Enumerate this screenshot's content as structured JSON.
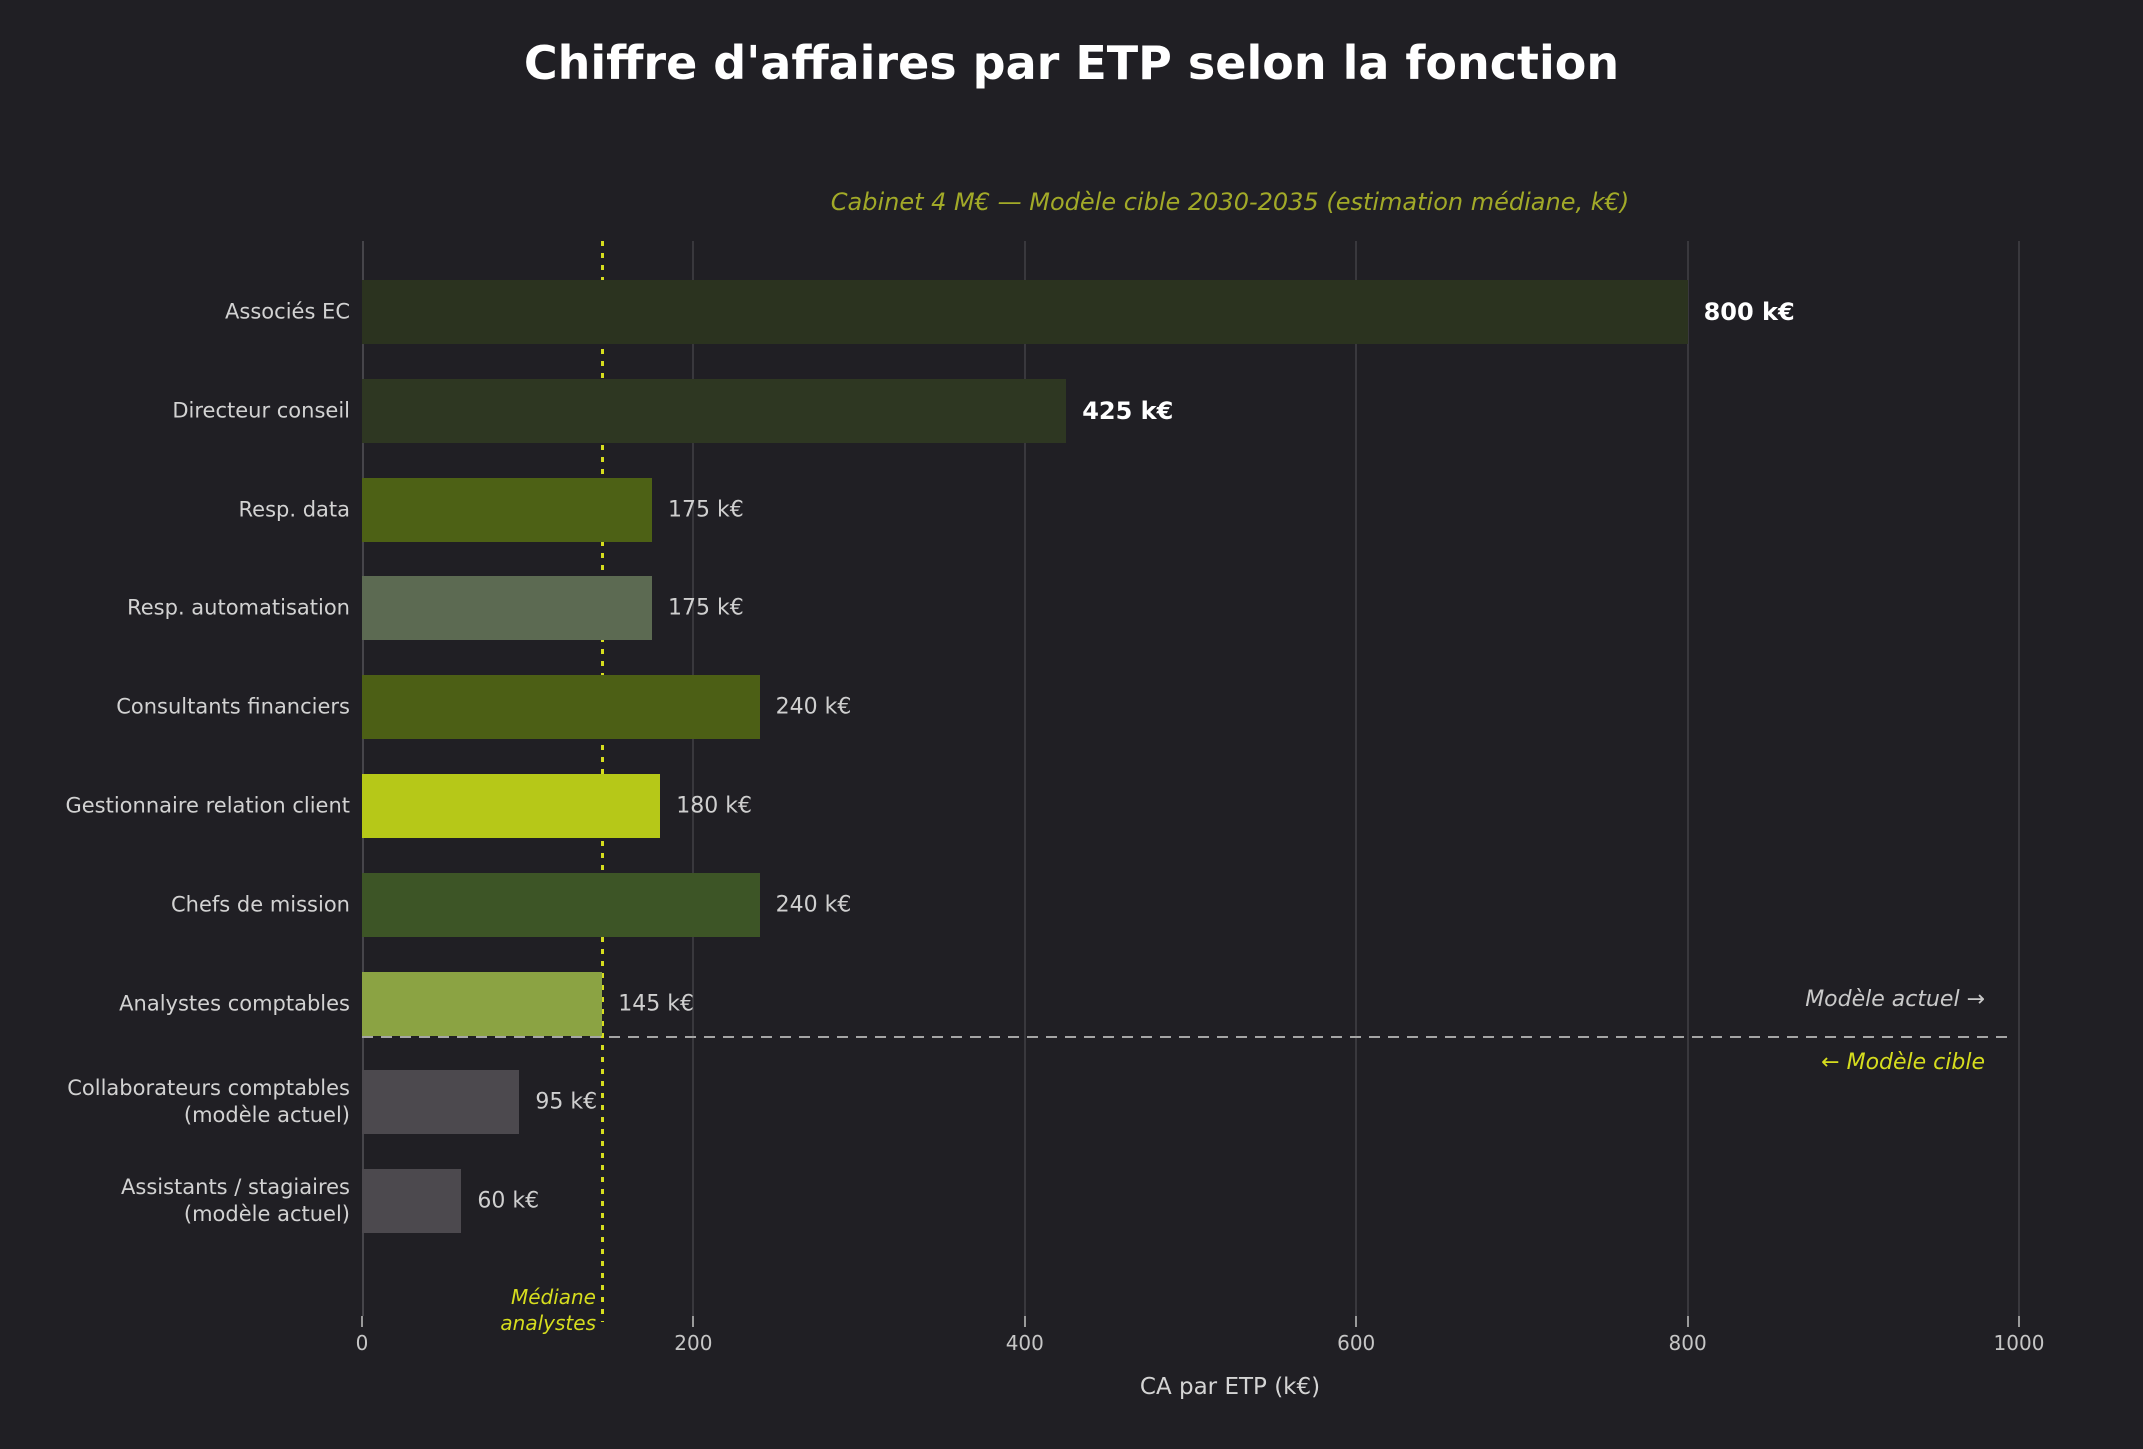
{
  "chart_data": {
    "type": "bar",
    "orientation": "horizontal",
    "title": "Chiffre d'affaires par ETP selon la fonction",
    "subtitle": "Cabinet 4 M€ — Modèle cible 2030-2035 (estimation médiane, k€)",
    "xlabel": "CA par ETP (k€)",
    "xlim": [
      0,
      1000
    ],
    "xticks": [
      0,
      200,
      400,
      600,
      800,
      1000
    ],
    "grid": "vertical",
    "legend": "none",
    "bars": [
      {
        "category": "Associés EC",
        "value": 800,
        "label": "800 k€",
        "color": "#2b331f",
        "bold": true
      },
      {
        "category": "Directeur conseil",
        "value": 425,
        "label": "425 k€",
        "color": "#2e3722",
        "bold": true
      },
      {
        "category": "Resp. data",
        "value": 175,
        "label": "175 k€",
        "color": "#4d6115",
        "bold": false
      },
      {
        "category": "Resp. automatisation",
        "value": 175,
        "label": "175 k€",
        "color": "#5c6a52",
        "bold": false
      },
      {
        "category": "Consultants financiers",
        "value": 240,
        "label": "240 k€",
        "color": "#4c5f15",
        "bold": false
      },
      {
        "category": "Gestionnaire relation client",
        "value": 180,
        "label": "180 k€",
        "color": "#b6c818",
        "bold": false
      },
      {
        "category": "Chefs de mission",
        "value": 240,
        "label": "240 k€",
        "color": "#3d5526",
        "bold": false
      },
      {
        "category": "Analystes comptables",
        "value": 145,
        "label": "145 k€",
        "color": "#8ba343",
        "bold": false
      },
      {
        "category": "Collaborateurs comptables\n(modèle actuel)",
        "value": 95,
        "label": "95 k€",
        "color": "#4c494e",
        "bold": false
      },
      {
        "category": "Assistants / stagiaires\n(modèle actuel)",
        "value": 60,
        "label": "60 k€",
        "color": "#4c494e",
        "bold": false
      }
    ],
    "annotations": {
      "median_line": {
        "x": 145,
        "label": "Médiane\nanalystes"
      },
      "separator_label_above": "Modèle actuel →",
      "separator_label_below": "← Modèle cible"
    }
  },
  "colors": {
    "background": "#201f24",
    "grid": "#39383d",
    "spine": "#46454a",
    "title": "#ffffff",
    "subtitle": "#a2aa28",
    "text": "#d2d2d2",
    "tick": "#c6c6c6",
    "accent_yellow": "#d6dd1e",
    "separator": "#a5a5a5"
  }
}
